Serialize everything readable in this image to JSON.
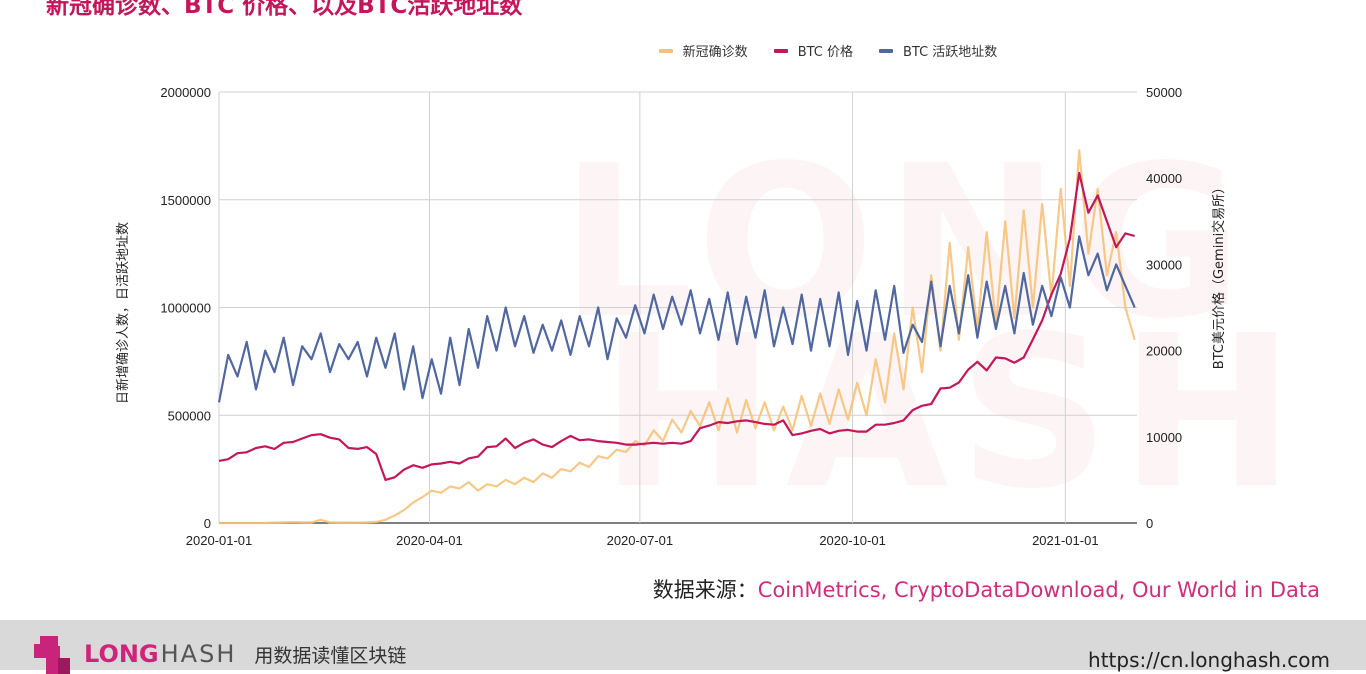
{
  "title": "新冠确诊数、BTC 价格、以及BTC活跃地址数",
  "source": {
    "label": "数据来源：",
    "links": "CoinMetrics, CryptoDataDownload, Our World in Data"
  },
  "footer": {
    "brand_bold": "LONG",
    "brand_light": "HASH",
    "slogan": "用数据读懂区块链",
    "url": "https://cn.longhash.com"
  },
  "watermark": {
    "line1": "LONG",
    "line2": "HASH"
  },
  "chart_data": {
    "type": "line",
    "title": "新冠确诊数、BTC 价格、以及BTC活跃地址数",
    "x_start": "2020-01-01",
    "step_days": 4,
    "x_range": [
      "2020-01-01",
      "2021-02-01"
    ],
    "x_ticks": [
      "2020-01-01",
      "2020-04-01",
      "2020-07-01",
      "2020-10-01",
      "2021-01-01"
    ],
    "ylabel_left": "日新增确诊人数，日活跃地址数",
    "ylabel_right": "BTC美元价格（Gemini交易所）",
    "ylim_left": [
      0,
      2000000
    ],
    "ylim_right": [
      0,
      50000
    ],
    "y_ticks_left": [
      "0",
      "500000",
      "1000000",
      "1500000",
      "2000000"
    ],
    "y_ticks_right": [
      "0",
      "10000",
      "20000",
      "30000",
      "40000",
      "50000"
    ],
    "grid": true,
    "legend_position": "top",
    "series": [
      {
        "name": "新冠确诊数",
        "axis": "left",
        "color": "#f6c27a",
        "values": [
          0,
          0,
          0,
          0,
          0,
          0,
          2000,
          3000,
          4000,
          3000,
          3000,
          15000,
          3000,
          2000,
          2000,
          2000,
          3000,
          5000,
          15000,
          35000,
          60000,
          95000,
          120000,
          150000,
          140000,
          170000,
          160000,
          190000,
          150000,
          180000,
          170000,
          200000,
          180000,
          210000,
          190000,
          230000,
          210000,
          250000,
          240000,
          280000,
          260000,
          310000,
          300000,
          340000,
          330000,
          380000,
          360000,
          430000,
          380000,
          480000,
          420000,
          520000,
          450000,
          560000,
          430000,
          580000,
          420000,
          570000,
          440000,
          560000,
          430000,
          540000,
          430000,
          590000,
          450000,
          600000,
          460000,
          620000,
          480000,
          650000,
          500000,
          760000,
          560000,
          880000,
          620000,
          1000000,
          700000,
          1150000,
          800000,
          1300000,
          850000,
          1280000,
          900000,
          1350000,
          920000,
          1400000,
          950000,
          1450000,
          1000000,
          1480000,
          1050000,
          1550000,
          1100000,
          1730000,
          1250000,
          1550000,
          1150000,
          1350000,
          1000000,
          850000
        ]
      },
      {
        "name": "BTC 价格",
        "axis": "right",
        "color": "#c2185b",
        "values": [
          7200,
          7400,
          8100,
          8200,
          8700,
          8900,
          8600,
          9300,
          9400,
          9800,
          10200,
          10300,
          9900,
          9700,
          8700,
          8600,
          8800,
          8000,
          5000,
          5300,
          6200,
          6700,
          6400,
          6800,
          6900,
          7100,
          6900,
          7500,
          7700,
          8800,
          8900,
          9800,
          8700,
          9300,
          9700,
          9100,
          8800,
          9500,
          10100,
          9600,
          9700,
          9500,
          9400,
          9300,
          9100,
          9100,
          9200,
          9300,
          9200,
          9300,
          9200,
          9500,
          11000,
          11300,
          11700,
          11600,
          11800,
          11900,
          11700,
          11500,
          11400,
          11900,
          10200,
          10400,
          10700,
          10900,
          10400,
          10700,
          10800,
          10600,
          10600,
          11400,
          11400,
          11600,
          11900,
          13100,
          13600,
          13800,
          15600,
          15700,
          16300,
          17800,
          18700,
          17700,
          19200,
          19100,
          18600,
          19200,
          21300,
          23500,
          26500,
          28900,
          33000,
          40600,
          36000,
          38000,
          35000,
          32000,
          33600,
          33300
        ]
      },
      {
        "name": "BTC 活跃地址数",
        "axis": "left",
        "color": "#5067a0",
        "values": [
          560000,
          780000,
          680000,
          840000,
          620000,
          800000,
          700000,
          860000,
          640000,
          820000,
          760000,
          880000,
          700000,
          830000,
          760000,
          840000,
          680000,
          860000,
          720000,
          880000,
          620000,
          820000,
          580000,
          760000,
          600000,
          860000,
          640000,
          900000,
          720000,
          960000,
          800000,
          1000000,
          820000,
          960000,
          790000,
          920000,
          800000,
          940000,
          780000,
          960000,
          820000,
          1000000,
          760000,
          950000,
          860000,
          1010000,
          880000,
          1060000,
          900000,
          1050000,
          920000,
          1080000,
          880000,
          1040000,
          850000,
          1070000,
          830000,
          1050000,
          860000,
          1080000,
          820000,
          1000000,
          830000,
          1060000,
          800000,
          1040000,
          820000,
          1070000,
          780000,
          1030000,
          800000,
          1080000,
          850000,
          1100000,
          790000,
          920000,
          840000,
          1120000,
          820000,
          1100000,
          880000,
          1150000,
          860000,
          1120000,
          900000,
          1100000,
          880000,
          1160000,
          920000,
          1100000,
          960000,
          1140000,
          1000000,
          1330000,
          1150000,
          1250000,
          1080000,
          1200000,
          1100000,
          1000000
        ]
      }
    ]
  }
}
